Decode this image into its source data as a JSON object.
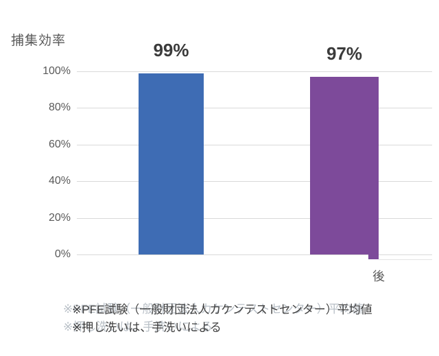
{
  "chart": {
    "title": "捕集効率"
  },
  "chart_data": {
    "type": "bar",
    "title": "捕集効率",
    "categories": [
      "",
      "後"
    ],
    "values": [
      99,
      97
    ],
    "data_labels": [
      "99%",
      "97%"
    ],
    "series_colors": [
      "#3e6cb4",
      "#7d4a9a"
    ],
    "y_ticks": [
      "100%",
      "80%",
      "60%",
      "40%",
      "20%",
      "0%"
    ],
    "ylim": [
      0,
      100
    ],
    "grid": "horizontal",
    "legend": "none",
    "x_label_after": "後"
  },
  "notes": {
    "line1": "※PFE試験（一般財団法人カケンテストセンター）平均値",
    "line2": "※押し洗いは、手洗いによる"
  },
  "colors": {
    "gridline": "#d9d9d9",
    "axis_text": "#595959",
    "data_label_text": "#3b3b3b",
    "note_text": "#3f3f3f"
  }
}
